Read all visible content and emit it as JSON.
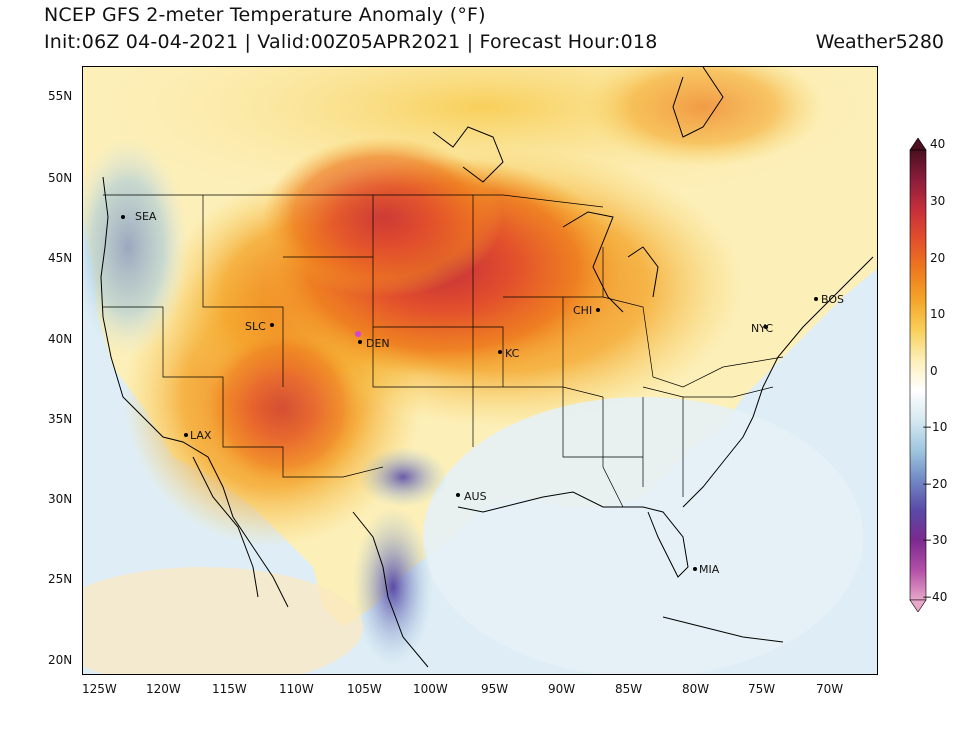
{
  "header": {
    "title": "NCEP GFS 2-meter Temperature Anomaly (°F)",
    "subtitle": "Init:06Z 04-04-2021 | Valid:00Z05APR2021 | Forecast Hour:018",
    "brand": "Weather5280"
  },
  "map": {
    "projection": "Lambert conformal",
    "lat_ticks": [
      "55N",
      "50N",
      "45N",
      "40N",
      "35N",
      "30N",
      "25N",
      "20N"
    ],
    "lon_ticks": [
      "125W",
      "120W",
      "115W",
      "110W",
      "105W",
      "100W",
      "95W",
      "90W",
      "85W",
      "80W",
      "75W",
      "70W"
    ],
    "cities": [
      {
        "name": "SEA"
      },
      {
        "name": "SLC"
      },
      {
        "name": "DEN"
      },
      {
        "name": "LAX"
      },
      {
        "name": "KC"
      },
      {
        "name": "CHI"
      },
      {
        "name": "NYC"
      },
      {
        "name": "BOS"
      },
      {
        "name": "AUS"
      },
      {
        "name": "MIA"
      }
    ],
    "colors": {
      "ocean": "#dfeef6",
      "land_neutral": "#f6f3ea"
    }
  },
  "colorbar": {
    "min": -40,
    "max": 40,
    "labels": [
      "40",
      "30",
      "20",
      "10",
      "0",
      "−10",
      "−20",
      "−30",
      "−40"
    ],
    "stops": [
      "#4b0f1f",
      "#8c1d3c",
      "#c62f3a",
      "#e2502c",
      "#ee7a1f",
      "#f4a52a",
      "#f8cf5a",
      "#fcefb8",
      "#ffffff",
      "#d6e9f1",
      "#9fc7df",
      "#7189c4",
      "#5a4aa7",
      "#7a2a8e",
      "#b34fa8",
      "#e8a7c9"
    ]
  }
}
